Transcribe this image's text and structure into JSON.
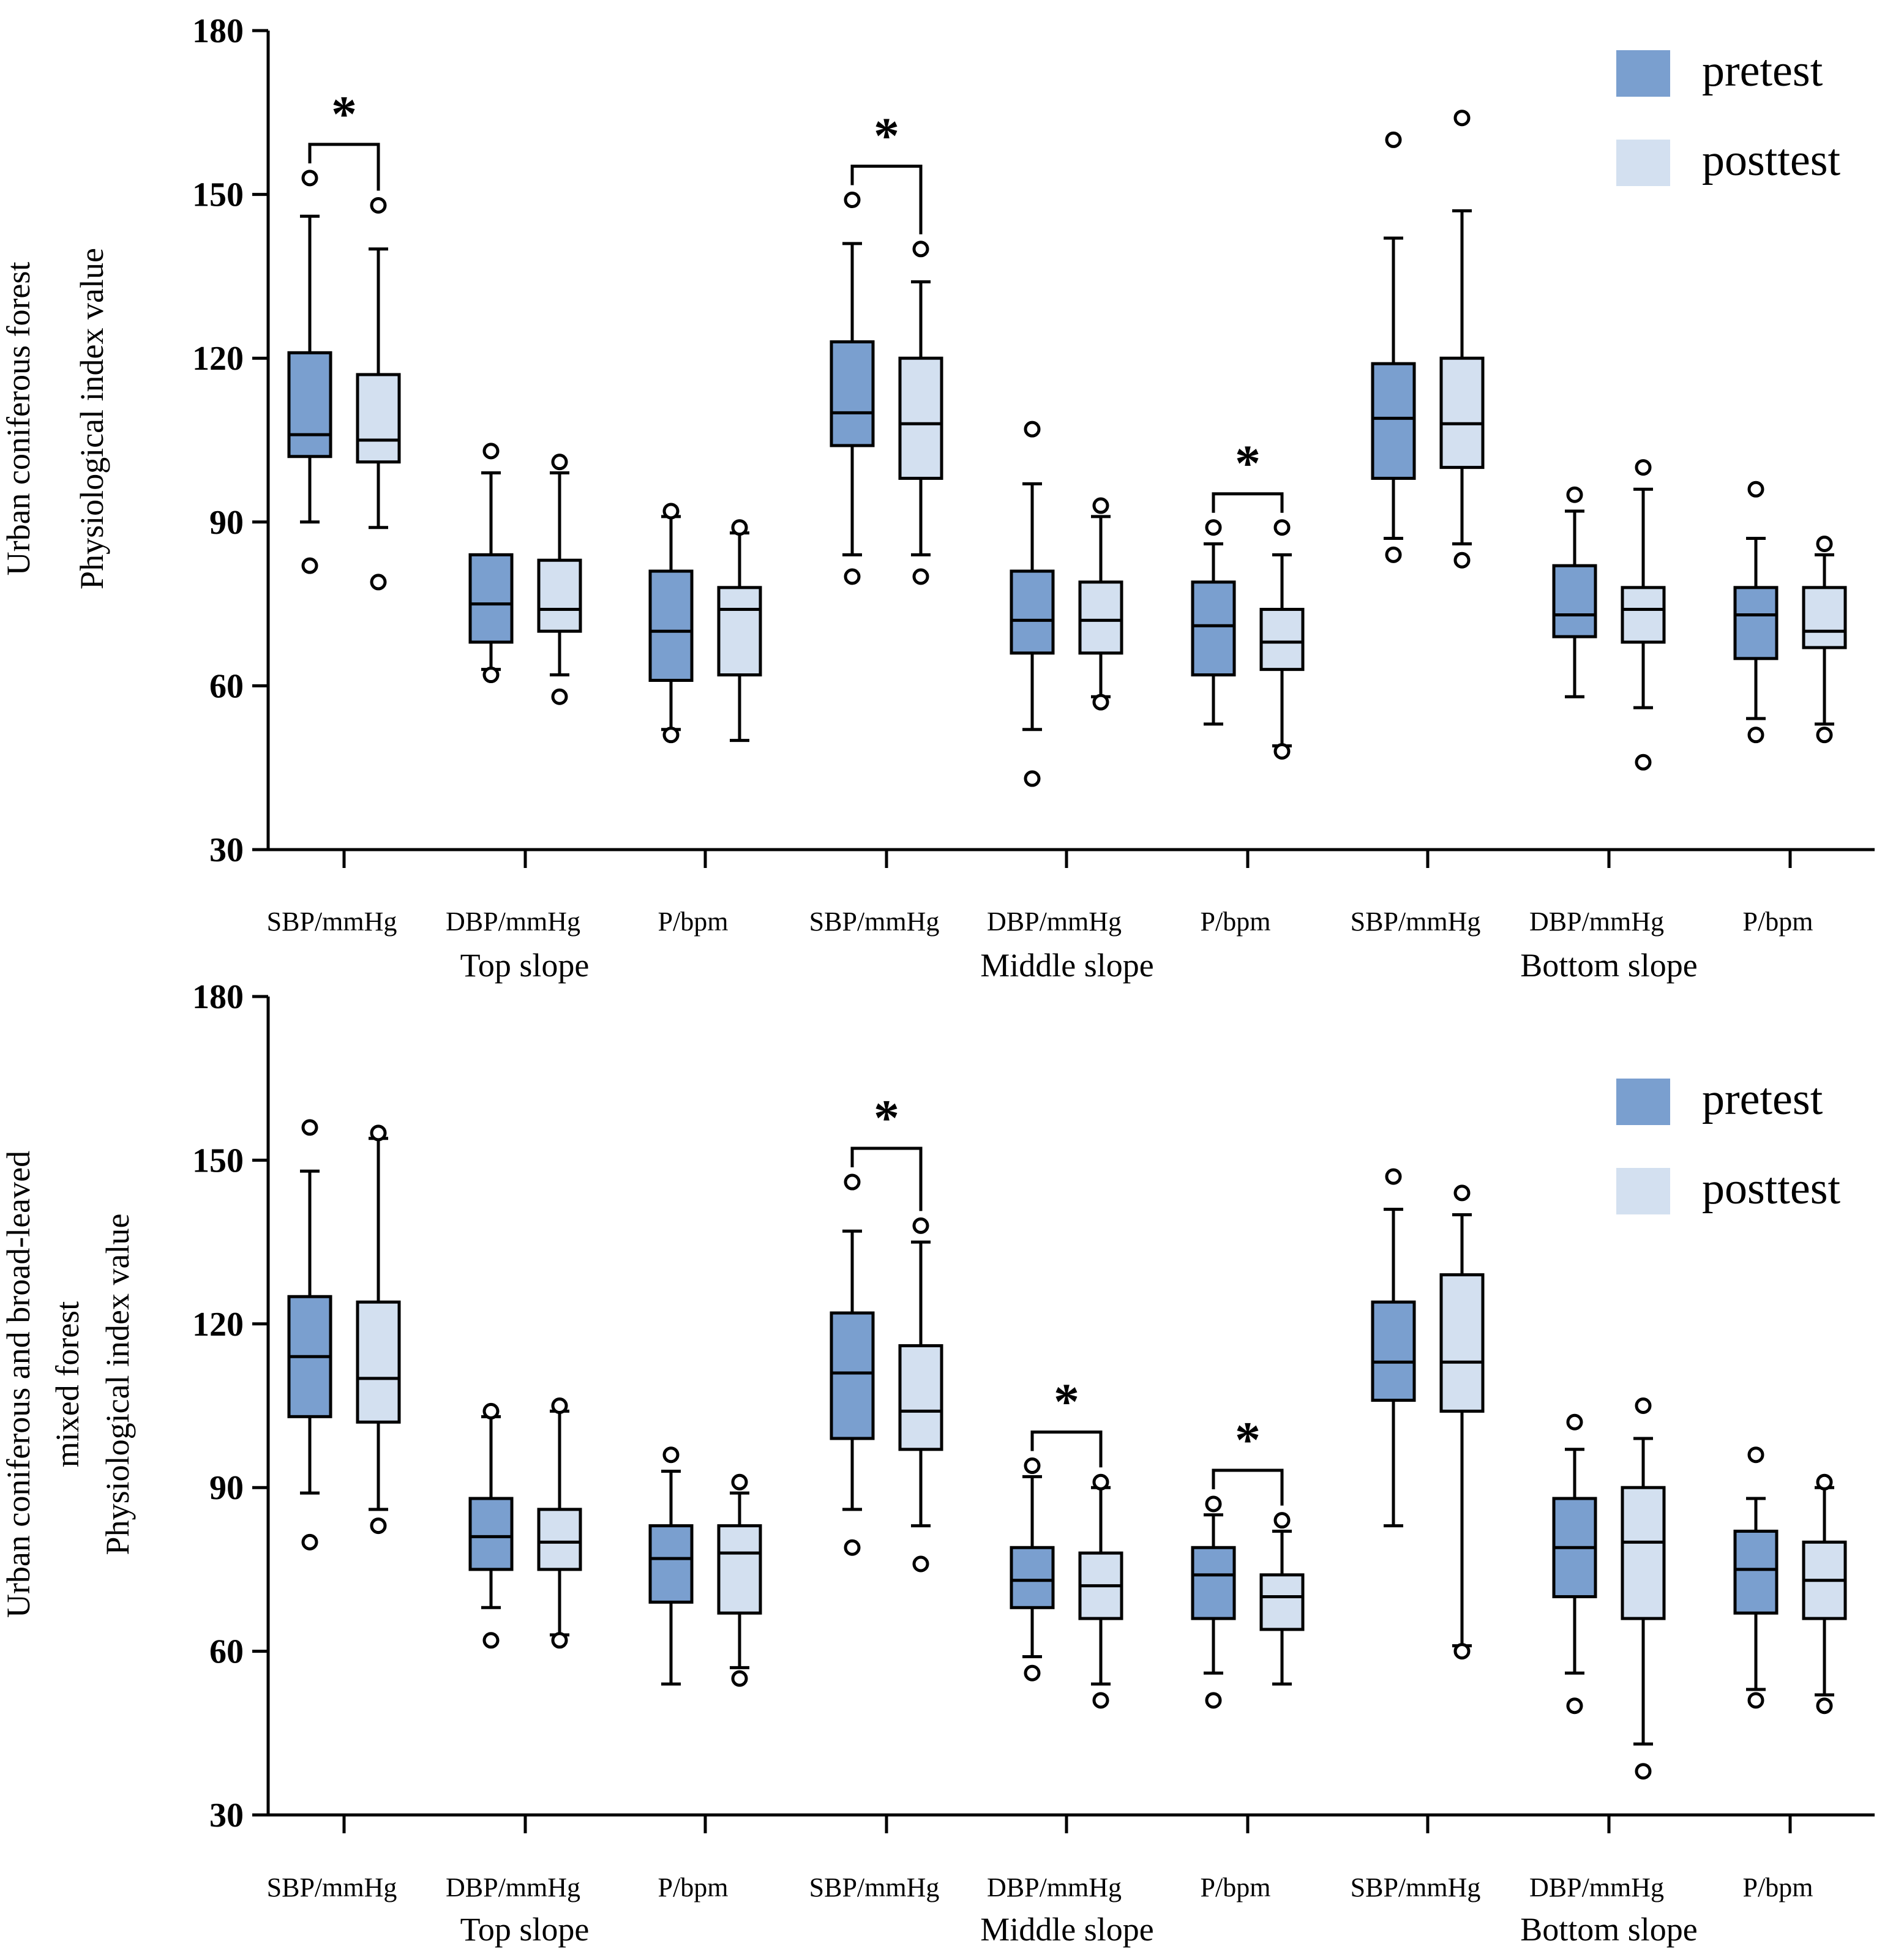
{
  "colors": {
    "pretest": "#7a9fcf",
    "posttest": "#d3e0f0",
    "stroke": "#000000"
  },
  "legend": {
    "pretest": "pretest",
    "posttest": "posttest"
  },
  "chart_data": [
    {
      "type": "box",
      "title": "",
      "ylabel_lines": [
        "Urban coniferous forest",
        "Physiological index value"
      ],
      "ylim": [
        30,
        180
      ],
      "yticks": [
        30,
        60,
        90,
        120,
        150,
        180
      ],
      "yticks_text": [
        "30",
        "60",
        "90",
        "120",
        "150",
        "180"
      ],
      "legend_position": "top-right",
      "categories": [
        "SBP/mmHg",
        "DBP/mmHg",
        "P/bpm",
        "SBP/mmHg",
        "DBP/mmHg",
        "P/bpm",
        "SBP/mmHg",
        "DBP/mmHg",
        "P/bpm"
      ],
      "groups": [
        {
          "label": "Top slope",
          "span": [
            0,
            2
          ]
        },
        {
          "label": "Middle slope",
          "span": [
            3,
            5
          ]
        },
        {
          "label": "Bottom slope",
          "span": [
            6,
            8
          ]
        }
      ],
      "significance": [
        {
          "category": 0,
          "label": "*"
        },
        {
          "category": 3,
          "label": "*"
        },
        {
          "category": 5,
          "label": "*"
        }
      ],
      "series": [
        {
          "name": "pretest",
          "boxes": [
            {
              "whislo": 90,
              "q1": 102,
              "med": 106,
              "q3": 121,
              "whishi": 146,
              "fliers": [
                82,
                153
              ]
            },
            {
              "whislo": 63,
              "q1": 68,
              "med": 75,
              "q3": 84,
              "whishi": 99,
              "fliers": [
                62,
                103
              ]
            },
            {
              "whislo": 52,
              "q1": 61,
              "med": 70,
              "q3": 81,
              "whishi": 91,
              "fliers": [
                51,
                92
              ]
            },
            {
              "whislo": 84,
              "q1": 104,
              "med": 110,
              "q3": 123,
              "whishi": 141,
              "fliers": [
                80,
                149
              ]
            },
            {
              "whislo": 52,
              "q1": 66,
              "med": 72,
              "q3": 81,
              "whishi": 97,
              "fliers": [
                43,
                107
              ]
            },
            {
              "whislo": 53,
              "q1": 62,
              "med": 71,
              "q3": 79,
              "whishi": 86,
              "fliers": [
                89
              ]
            },
            {
              "whislo": 87,
              "q1": 98,
              "med": 109,
              "q3": 119,
              "whishi": 142,
              "fliers": [
                84,
                160
              ]
            },
            {
              "whislo": 58,
              "q1": 69,
              "med": 73,
              "q3": 82,
              "whishi": 92,
              "fliers": [
                95
              ]
            },
            {
              "whislo": 54,
              "q1": 65,
              "med": 73,
              "q3": 78,
              "whishi": 87,
              "fliers": [
                51,
                96
              ]
            }
          ]
        },
        {
          "name": "posttest",
          "boxes": [
            {
              "whislo": 89,
              "q1": 101,
              "med": 105,
              "q3": 117,
              "whishi": 140,
              "fliers": [
                79,
                148
              ]
            },
            {
              "whislo": 62,
              "q1": 70,
              "med": 74,
              "q3": 83,
              "whishi": 99,
              "fliers": [
                58,
                101
              ]
            },
            {
              "whislo": 50,
              "q1": 62,
              "med": 74,
              "q3": 78,
              "whishi": 88,
              "fliers": [
                89
              ]
            },
            {
              "whislo": 84,
              "q1": 98,
              "med": 108,
              "q3": 120,
              "whishi": 134,
              "fliers": [
                80,
                140
              ]
            },
            {
              "whislo": 58,
              "q1": 66,
              "med": 72,
              "q3": 79,
              "whishi": 91,
              "fliers": [
                57,
                93
              ]
            },
            {
              "whislo": 49,
              "q1": 63,
              "med": 68,
              "q3": 74,
              "whishi": 84,
              "fliers": [
                48,
                89
              ]
            },
            {
              "whislo": 86,
              "q1": 100,
              "med": 108,
              "q3": 120,
              "whishi": 147,
              "fliers": [
                83,
                164
              ]
            },
            {
              "whislo": 56,
              "q1": 68,
              "med": 74,
              "q3": 78,
              "whishi": 96,
              "fliers": [
                46,
                100
              ]
            },
            {
              "whislo": 53,
              "q1": 67,
              "med": 70,
              "q3": 78,
              "whishi": 84,
              "fliers": [
                51,
                86
              ]
            }
          ]
        }
      ]
    },
    {
      "type": "box",
      "title": "",
      "ylabel_lines": [
        "Urban coniferous and broad-leaved",
        "mixed forest",
        "Physiological index value"
      ],
      "ylim": [
        30,
        180
      ],
      "yticks": [
        30,
        60,
        90,
        120,
        150,
        180
      ],
      "yticks_text": [
        "30",
        "60",
        "90",
        "120",
        "150",
        "180"
      ],
      "legend_position": "top-right",
      "categories": [
        "SBP/mmHg",
        "DBP/mmHg",
        "P/bpm",
        "SBP/mmHg",
        "DBP/mmHg",
        "P/bpm",
        "SBP/mmHg",
        "DBP/mmHg",
        "P/bpm"
      ],
      "groups": [
        {
          "label": "Top slope",
          "span": [
            0,
            2
          ]
        },
        {
          "label": "Middle slope",
          "span": [
            3,
            5
          ]
        },
        {
          "label": "Bottom slope",
          "span": [
            6,
            8
          ]
        }
      ],
      "significance": [
        {
          "category": 3,
          "label": "*"
        },
        {
          "category": 4,
          "label": "*"
        },
        {
          "category": 5,
          "label": "*"
        }
      ],
      "series": [
        {
          "name": "pretest",
          "boxes": [
            {
              "whislo": 89,
              "q1": 103,
              "med": 114,
              "q3": 125,
              "whishi": 148,
              "fliers": [
                80,
                156
              ]
            },
            {
              "whislo": 68,
              "q1": 75,
              "med": 81,
              "q3": 88,
              "whishi": 103,
              "fliers": [
                62,
                104
              ]
            },
            {
              "whislo": 54,
              "q1": 69,
              "med": 77,
              "q3": 83,
              "whishi": 93,
              "fliers": [
                96
              ]
            },
            {
              "whislo": 86,
              "q1": 99,
              "med": 111,
              "q3": 122,
              "whishi": 137,
              "fliers": [
                79,
                146
              ]
            },
            {
              "whislo": 59,
              "q1": 68,
              "med": 73,
              "q3": 79,
              "whishi": 92,
              "fliers": [
                56,
                94
              ]
            },
            {
              "whislo": 56,
              "q1": 66,
              "med": 74,
              "q3": 79,
              "whishi": 85,
              "fliers": [
                51,
                87
              ]
            },
            {
              "whislo": 83,
              "q1": 106,
              "med": 113,
              "q3": 124,
              "whishi": 141,
              "fliers": [
                147
              ]
            },
            {
              "whislo": 56,
              "q1": 70,
              "med": 79,
              "q3": 88,
              "whishi": 97,
              "fliers": [
                50,
                102
              ]
            },
            {
              "whislo": 53,
              "q1": 67,
              "med": 75,
              "q3": 82,
              "whishi": 88,
              "fliers": [
                51,
                96
              ]
            }
          ]
        },
        {
          "name": "posttest",
          "boxes": [
            {
              "whislo": 86,
              "q1": 102,
              "med": 110,
              "q3": 124,
              "whishi": 154,
              "fliers": [
                83,
                155
              ]
            },
            {
              "whislo": 63,
              "q1": 75,
              "med": 80,
              "q3": 86,
              "whishi": 104,
              "fliers": [
                62,
                105
              ]
            },
            {
              "whislo": 57,
              "q1": 67,
              "med": 78,
              "q3": 83,
              "whishi": 89,
              "fliers": [
                55,
                91
              ]
            },
            {
              "whislo": 83,
              "q1": 97,
              "med": 104,
              "q3": 116,
              "whishi": 135,
              "fliers": [
                76,
                138
              ]
            },
            {
              "whislo": 54,
              "q1": 66,
              "med": 72,
              "q3": 78,
              "whishi": 90,
              "fliers": [
                51,
                91
              ]
            },
            {
              "whislo": 54,
              "q1": 64,
              "med": 70,
              "q3": 74,
              "whishi": 82,
              "fliers": [
                84
              ]
            },
            {
              "whislo": 61,
              "q1": 104,
              "med": 113,
              "q3": 129,
              "whishi": 140,
              "fliers": [
                60,
                144
              ]
            },
            {
              "whislo": 43,
              "q1": 66,
              "med": 80,
              "q3": 90,
              "whishi": 99,
              "fliers": [
                38,
                105
              ]
            },
            {
              "whislo": 52,
              "q1": 66,
              "med": 73,
              "q3": 80,
              "whishi": 90,
              "fliers": [
                50,
                91
              ]
            }
          ]
        }
      ]
    }
  ]
}
